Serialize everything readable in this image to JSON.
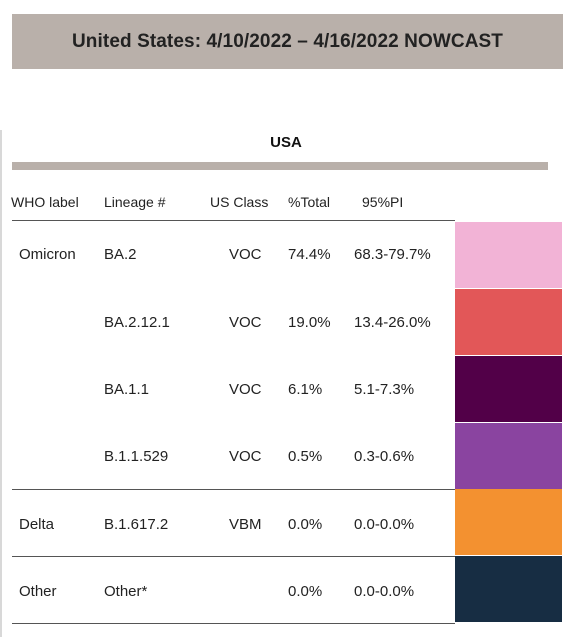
{
  "banner": {
    "title": "United States: 4/10/2022 – 4/16/2022 NOWCAST"
  },
  "region": {
    "label": "USA"
  },
  "columns": {
    "who_label": "WHO label",
    "lineage": "Lineage #",
    "us_class": "US Class",
    "pct_total": "%Total",
    "pi": "95%PI"
  },
  "rows": [
    {
      "who": "Omicron",
      "lineage": "BA.2",
      "class": "VOC",
      "pct": "74.4%",
      "pi": "68.3-79.7%",
      "color": "#f2b3d6"
    },
    {
      "who": "",
      "lineage": "BA.2.12.1",
      "class": "VOC",
      "pct": "19.0%",
      "pi": "13.4-26.0%",
      "color": "#e25758"
    },
    {
      "who": "",
      "lineage": "BA.1.1",
      "class": "VOC",
      "pct": "6.1%",
      "pi": "5.1-7.3%",
      "color": "#520048"
    },
    {
      "who": "",
      "lineage": "B.1.1.529",
      "class": "VOC",
      "pct": "0.5%",
      "pi": "0.3-0.6%",
      "color": "#8a44a0"
    },
    {
      "who": "Delta",
      "lineage": "B.1.617.2",
      "class": "VBM",
      "pct": "0.0%",
      "pi": "0.0-0.0%",
      "color": "#f39130"
    },
    {
      "who": "Other",
      "lineage": "Other*",
      "class": "",
      "pct": "0.0%",
      "pi": "0.0-0.0%",
      "color": "#172d43"
    }
  ]
}
